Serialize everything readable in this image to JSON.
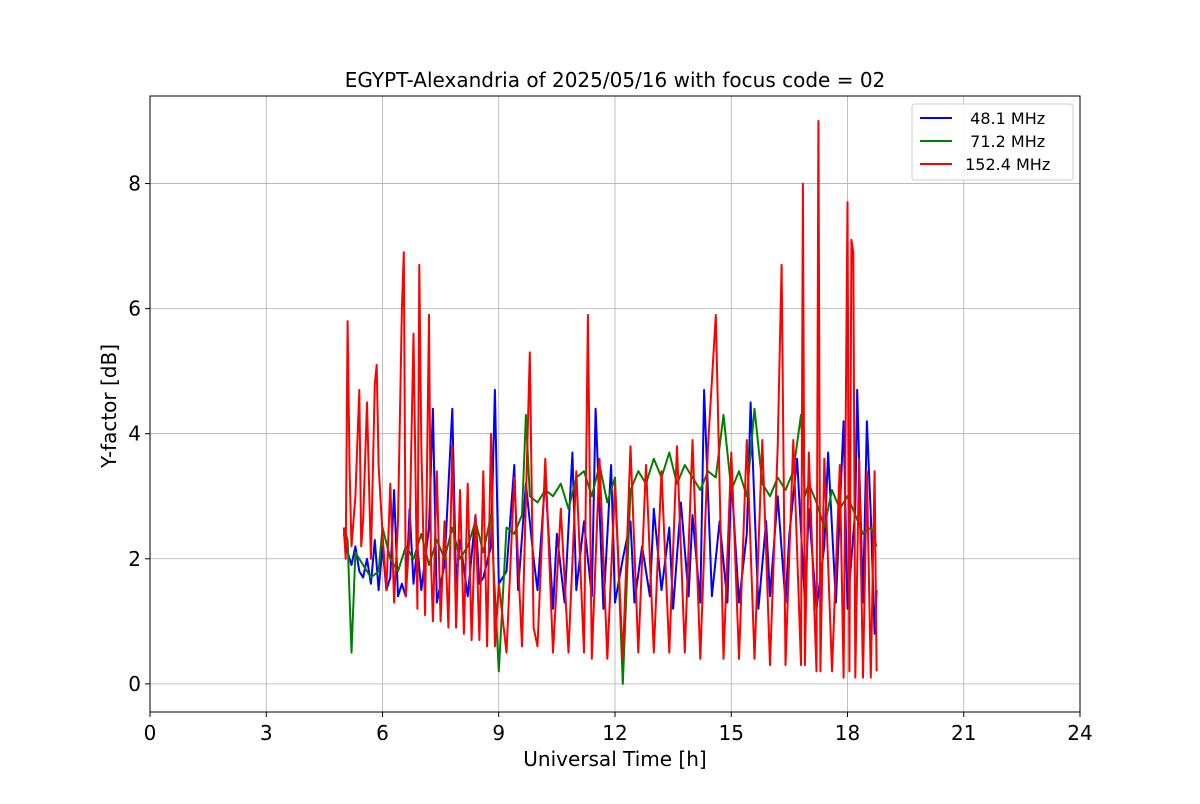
{
  "chart_data": {
    "type": "line",
    "title": "EGYPT-Alexandria of 2025/05/16 with focus code = 02",
    "xlabel": "Universal Time [h]",
    "ylabel": "Y-factor [dB]",
    "xlim": [
      0,
      24
    ],
    "ylim": [
      -0.45,
      9.4
    ],
    "xticks": [
      0,
      3,
      6,
      9,
      12,
      15,
      18,
      21,
      24
    ],
    "yticks": [
      0,
      2,
      4,
      6,
      8
    ],
    "grid": true,
    "legend_position": "top-right",
    "series": [
      {
        "name": "  48.1 MHz",
        "color": "#0000ff",
        "x": [
          5.0,
          5.1,
          5.2,
          5.3,
          5.4,
          5.5,
          5.6,
          5.7,
          5.8,
          5.9,
          6.0,
          6.1,
          6.2,
          6.3,
          6.4,
          6.5,
          6.6,
          6.7,
          6.8,
          6.9,
          7.0,
          7.2,
          7.3,
          7.4,
          7.6,
          7.8,
          7.9,
          8.0,
          8.2,
          8.4,
          8.5,
          8.6,
          8.8,
          8.9,
          9.0,
          9.2,
          9.4,
          9.5,
          9.7,
          9.9,
          10.0,
          10.2,
          10.4,
          10.5,
          10.7,
          10.9,
          11.0,
          11.2,
          11.4,
          11.5,
          11.7,
          11.9,
          12.0,
          12.2,
          12.4,
          12.5,
          12.7,
          12.9,
          13.0,
          13.2,
          13.4,
          13.5,
          13.7,
          13.9,
          14.0,
          14.2,
          14.3,
          14.5,
          14.7,
          14.9,
          15.0,
          15.2,
          15.4,
          15.5,
          15.7,
          15.9,
          16.0,
          16.2,
          16.4,
          16.5,
          16.7,
          16.9,
          17.0,
          17.2,
          17.4,
          17.5,
          17.7,
          17.9,
          18.0,
          18.2,
          18.25,
          18.4,
          18.5,
          18.6,
          18.7,
          18.75
        ],
        "y": [
          2.4,
          2.1,
          1.9,
          2.2,
          1.8,
          1.7,
          2.0,
          1.6,
          2.3,
          1.5,
          2.2,
          1.5,
          1.7,
          3.1,
          1.4,
          1.6,
          1.4,
          2.8,
          1.6,
          2.2,
          1.5,
          2.5,
          4.4,
          1.3,
          1.9,
          4.4,
          1.6,
          2.3,
          1.4,
          2.7,
          1.6,
          1.7,
          2.2,
          4.7,
          1.6,
          1.8,
          3.5,
          1.5,
          3.2,
          2.0,
          1.5,
          3.3,
          1.2,
          2.4,
          1.3,
          3.7,
          1.5,
          2.6,
          1.4,
          4.4,
          1.2,
          3.5,
          1.3,
          2.0,
          2.6,
          1.3,
          2.2,
          1.4,
          2.8,
          1.5,
          2.5,
          1.2,
          2.9,
          1.4,
          2.7,
          1.3,
          4.7,
          1.4,
          2.6,
          1.3,
          3.3,
          1.3,
          2.4,
          4.5,
          1.2,
          2.6,
          1.4,
          3.0,
          1.3,
          2.4,
          3.6,
          1.3,
          2.8,
          1.2,
          2.2,
          3.7,
          1.3,
          4.2,
          1.2,
          2.8,
          4.7,
          1.3,
          4.2,
          2.7,
          0.8,
          1.5
        ]
      },
      {
        "name": "  71.2 MHz",
        "color": "#008000",
        "x": [
          5.0,
          5.1,
          5.2,
          5.3,
          5.5,
          5.7,
          5.9,
          6.0,
          6.2,
          6.4,
          6.6,
          6.8,
          7.0,
          7.2,
          7.4,
          7.6,
          7.8,
          8.0,
          8.2,
          8.4,
          8.6,
          8.8,
          9.0,
          9.2,
          9.4,
          9.6,
          9.7,
          9.8,
          10.0,
          10.2,
          10.4,
          10.6,
          10.8,
          11.0,
          11.2,
          11.4,
          11.6,
          11.8,
          12.0,
          12.2,
          12.4,
          12.6,
          12.8,
          13.0,
          13.2,
          13.4,
          13.6,
          13.8,
          14.0,
          14.2,
          14.4,
          14.6,
          14.8,
          15.0,
          15.2,
          15.4,
          15.6,
          15.8,
          16.0,
          16.2,
          16.4,
          16.6,
          16.8,
          16.9,
          17.0,
          17.2,
          17.4,
          17.6,
          17.8,
          18.0,
          18.2,
          18.4,
          18.6,
          18.75
        ],
        "y": [
          2.5,
          2.3,
          0.5,
          2.1,
          1.9,
          1.7,
          1.8,
          2.5,
          2.0,
          1.8,
          2.2,
          2.0,
          2.4,
          1.9,
          2.3,
          2.0,
          2.5,
          2.0,
          2.2,
          2.6,
          2.1,
          2.7,
          0.2,
          2.5,
          2.4,
          2.7,
          4.3,
          3.0,
          2.9,
          3.1,
          3.0,
          3.2,
          2.8,
          3.3,
          3.4,
          3.0,
          3.5,
          2.9,
          3.3,
          0.0,
          3.1,
          3.4,
          3.2,
          3.6,
          3.3,
          3.7,
          3.2,
          3.5,
          3.3,
          3.1,
          3.4,
          3.3,
          4.3,
          3.1,
          3.4,
          3.0,
          4.4,
          3.2,
          3.0,
          3.3,
          3.1,
          3.4,
          4.3,
          3.0,
          3.2,
          2.9,
          2.5,
          3.1,
          2.8,
          3.0,
          2.7,
          2.4,
          2.5,
          2.2
        ]
      },
      {
        "name": " 152.4 MHz",
        "color": "#ff0000",
        "x": [
          5.0,
          5.05,
          5.1,
          5.15,
          5.2,
          5.3,
          5.4,
          5.45,
          5.5,
          5.6,
          5.7,
          5.8,
          5.85,
          5.9,
          6.0,
          6.1,
          6.2,
          6.3,
          6.4,
          6.5,
          6.55,
          6.6,
          6.7,
          6.8,
          6.9,
          6.95,
          7.0,
          7.1,
          7.2,
          7.25,
          7.3,
          7.4,
          7.5,
          7.6,
          7.7,
          7.8,
          7.9,
          8.0,
          8.1,
          8.2,
          8.3,
          8.4,
          8.5,
          8.6,
          8.7,
          8.8,
          8.9,
          9.0,
          9.2,
          9.4,
          9.6,
          9.8,
          9.9,
          10.0,
          10.2,
          10.4,
          10.6,
          10.8,
          11.0,
          11.2,
          11.3,
          11.4,
          11.6,
          11.8,
          12.0,
          12.2,
          12.4,
          12.6,
          12.8,
          13.0,
          13.2,
          13.4,
          13.6,
          13.8,
          14.0,
          14.2,
          14.4,
          14.6,
          14.8,
          15.0,
          15.2,
          15.4,
          15.6,
          15.8,
          16.0,
          16.2,
          16.3,
          16.4,
          16.6,
          16.8,
          16.85,
          16.9,
          17.0,
          17.2,
          17.25,
          17.3,
          17.4,
          17.6,
          17.8,
          17.9,
          18.0,
          18.05,
          18.1,
          18.15,
          18.2,
          18.3,
          18.4,
          18.5,
          18.6,
          18.7,
          18.75
        ],
        "y": [
          2.5,
          2.0,
          5.8,
          3.4,
          2.2,
          3.0,
          4.7,
          2.2,
          2.6,
          4.5,
          2.0,
          4.8,
          5.1,
          3.5,
          2.4,
          1.5,
          3.2,
          1.3,
          2.6,
          6.0,
          6.9,
          1.4,
          2.4,
          5.6,
          1.2,
          6.7,
          3.8,
          1.1,
          5.9,
          2.0,
          1.0,
          3.4,
          1.0,
          2.6,
          0.9,
          3.8,
          0.9,
          3.1,
          0.8,
          3.2,
          0.7,
          2.7,
          0.7,
          3.4,
          0.6,
          4.0,
          0.6,
          1.6,
          0.5,
          3.3,
          0.6,
          5.3,
          0.9,
          0.6,
          3.6,
          0.5,
          2.8,
          0.5,
          3.4,
          0.5,
          5.9,
          0.4,
          3.6,
          0.4,
          3.2,
          0.4,
          3.8,
          0.5,
          3.5,
          0.5,
          3.4,
          0.5,
          3.8,
          0.5,
          3.9,
          0.4,
          3.8,
          5.9,
          0.4,
          3.7,
          0.4,
          3.9,
          0.4,
          3.9,
          0.3,
          3.8,
          6.7,
          0.3,
          3.9,
          0.3,
          8.0,
          0.3,
          3.7,
          0.2,
          9.0,
          0.2,
          3.6,
          0.2,
          3.5,
          0.1,
          7.7,
          0.2,
          7.1,
          6.9,
          0.1,
          3.6,
          0.1,
          3.4,
          0.1,
          3.4,
          0.2
        ]
      }
    ]
  }
}
